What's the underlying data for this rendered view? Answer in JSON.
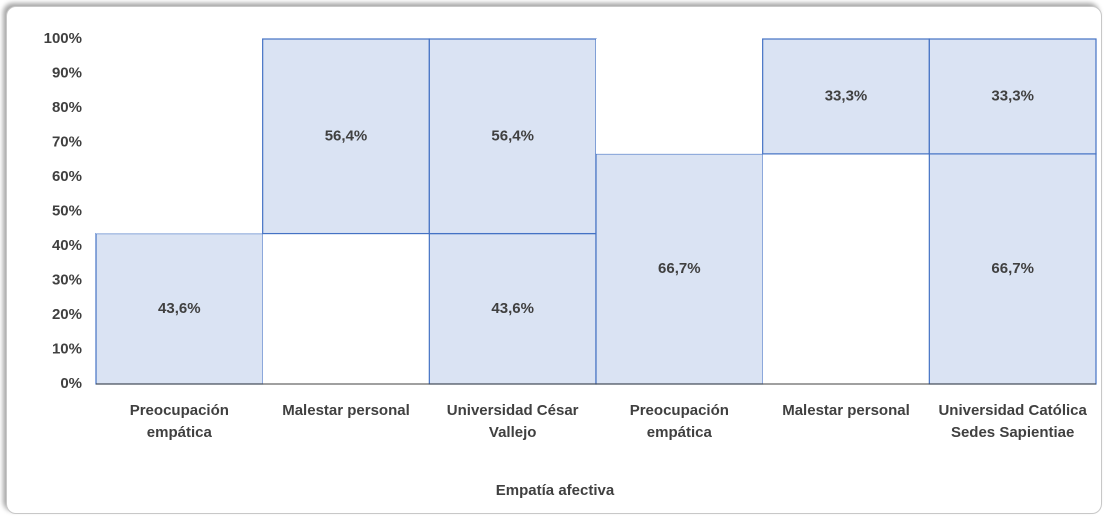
{
  "chart_data": {
    "type": "bar",
    "categories": [
      "Preocupación empática",
      "Malestar personal",
      "Universidad César Vallejo",
      "Preocupación empática",
      "Malestar personal",
      "Universidad Católica Sedes Sapientiae"
    ],
    "series": [
      {
        "colors": [
          "#dae3f3",
          "#ffffff",
          "#dae3f3",
          "#dae3f3",
          "#ffffff",
          "#dae3f3"
        ],
        "values": [
          43.6,
          43.6,
          43.6,
          66.7,
          66.7,
          66.7
        ],
        "value_labels": [
          "43,6%",
          null,
          "43,6%",
          "66,7%",
          null,
          "66,7%"
        ]
      },
      {
        "colors": [
          "#ffffff",
          "#dae3f3",
          "#dae3f3",
          "#ffffff",
          "#dae3f3",
          "#dae3f3"
        ],
        "values": [
          56.4,
          56.4,
          56.4,
          33.3,
          33.3,
          33.3
        ],
        "value_labels": [
          null,
          "56,4%",
          "56,4%",
          null,
          "33,3%",
          "33,3%"
        ]
      }
    ],
    "stacked": true,
    "edge_color": "#4472c4",
    "x_label": "Empatía afectiva",
    "ylim": [
      0,
      100
    ],
    "yticks": [
      {
        "value": 0,
        "label": "0%"
      },
      {
        "value": 10,
        "label": "10%"
      },
      {
        "value": 20,
        "label": "20%"
      },
      {
        "value": 30,
        "label": "30%"
      },
      {
        "value": 40,
        "label": "40%"
      },
      {
        "value": 50,
        "label": "50%"
      },
      {
        "value": 60,
        "label": "60%"
      },
      {
        "value": 70,
        "label": "70%"
      },
      {
        "value": 80,
        "label": "80%"
      },
      {
        "value": 90,
        "label": "90%"
      },
      {
        "value": 100,
        "label": "100%"
      }
    ]
  }
}
